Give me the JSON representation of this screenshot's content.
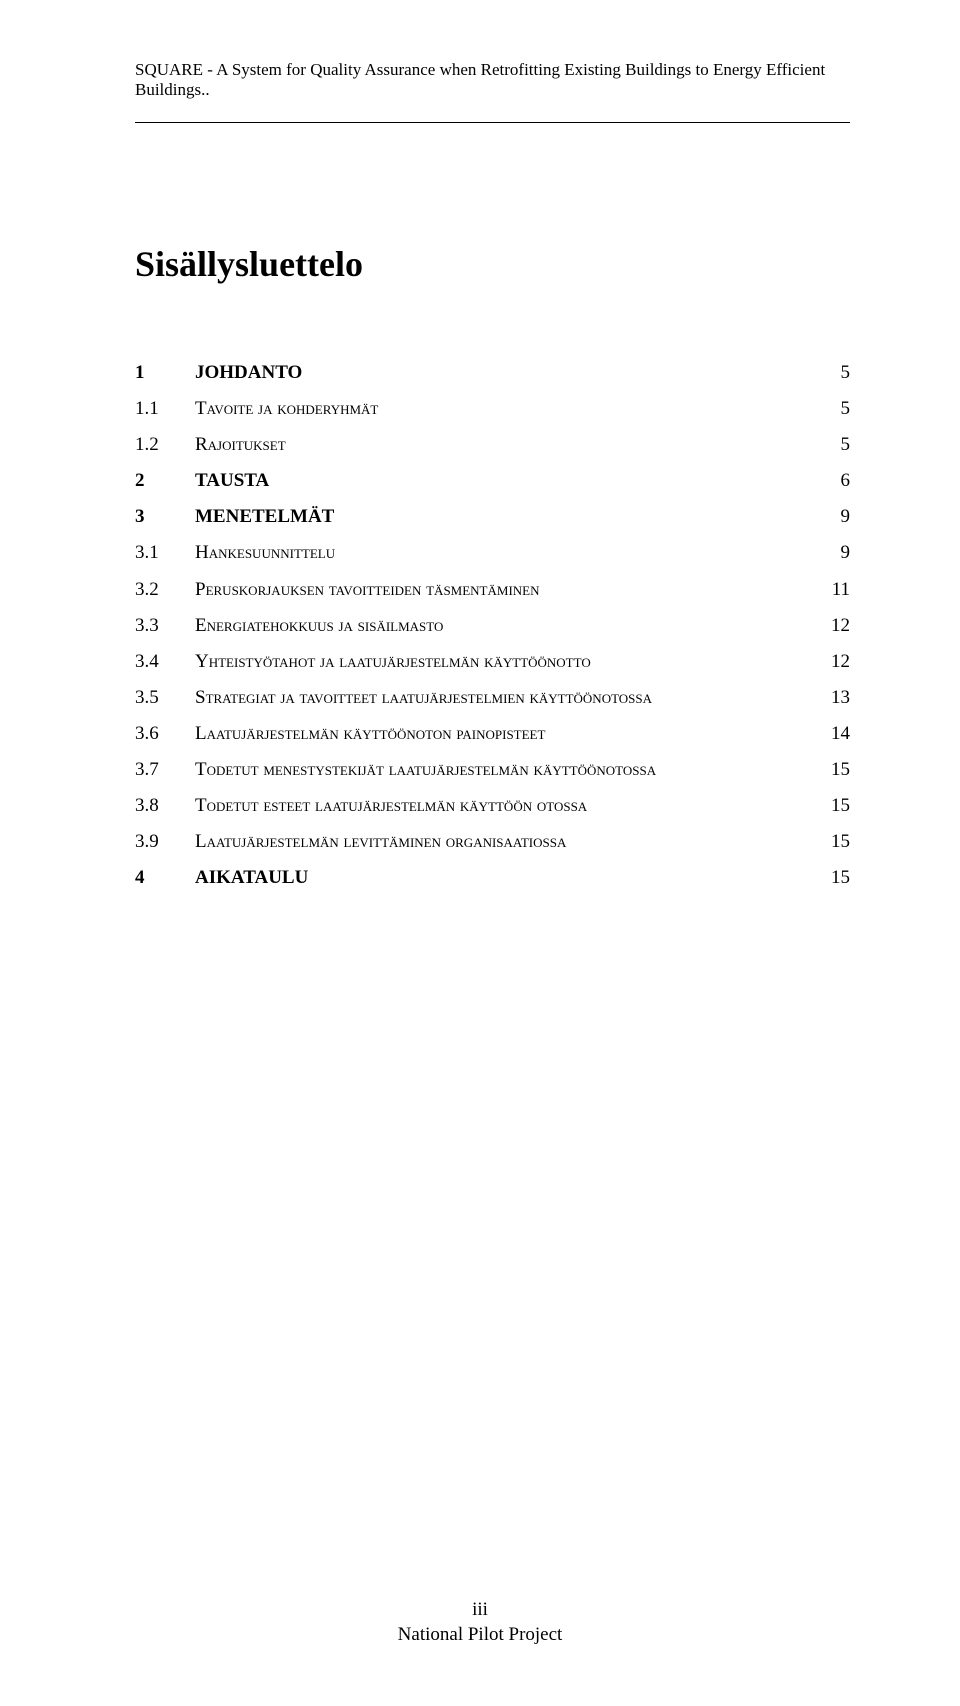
{
  "header": {
    "running_title": "SQUARE - A System for Quality Assurance when Retrofitting Existing Buildings to Energy Efficient Buildings.."
  },
  "toc": {
    "title": "Sisällysluettelo",
    "entries": [
      {
        "level": 1,
        "num": "1",
        "text": "JOHDANTO",
        "page": "5"
      },
      {
        "level": 2,
        "num": "1.1",
        "text": "Tavoite ja kohderyhmät",
        "page": "5"
      },
      {
        "level": 2,
        "num": "1.2",
        "text": "Rajoitukset",
        "page": "5"
      },
      {
        "level": 1,
        "num": "2",
        "text": "TAUSTA",
        "page": "6"
      },
      {
        "level": 1,
        "num": "3",
        "text": "MENETELMÄT",
        "page": "9"
      },
      {
        "level": 2,
        "num": "3.1",
        "text": "Hankesuunnittelu",
        "page": "9"
      },
      {
        "level": 2,
        "num": "3.2",
        "text": "Peruskorjauksen tavoitteiden täsmentäminen",
        "page": "11"
      },
      {
        "level": 2,
        "num": "3.3",
        "text": "Energiatehokkuus ja sisäilmasto",
        "page": "12"
      },
      {
        "level": 2,
        "num": "3.4",
        "text": "Yhteistyötahot ja laatujärjestelmän käyttöönotto",
        "page": "12"
      },
      {
        "level": 2,
        "num": "3.5",
        "text": "Strategiat ja tavoitteet laatujärjestelmien käyttöönotossa",
        "page": "13"
      },
      {
        "level": 2,
        "num": "3.6",
        "text": "Laatujärjestelmän käyttöönoton painopisteet",
        "page": "14"
      },
      {
        "level": 2,
        "num": "3.7",
        "text": "Todetut menestystekijät laatujärjestelmän käyttöönotossa",
        "page": "15"
      },
      {
        "level": 2,
        "num": "3.8",
        "text": "Todetut esteet laatujärjestelmän käyttöön otossa",
        "page": "15"
      },
      {
        "level": 2,
        "num": "3.9",
        "text": "Laatujärjestelmän levittäminen organisaatiossa",
        "page": "15"
      },
      {
        "level": 1,
        "num": "4",
        "text": "AIKATAULU",
        "page": "15"
      }
    ]
  },
  "footer": {
    "page_number": "iii",
    "doc_label": "National Pilot Project"
  }
}
